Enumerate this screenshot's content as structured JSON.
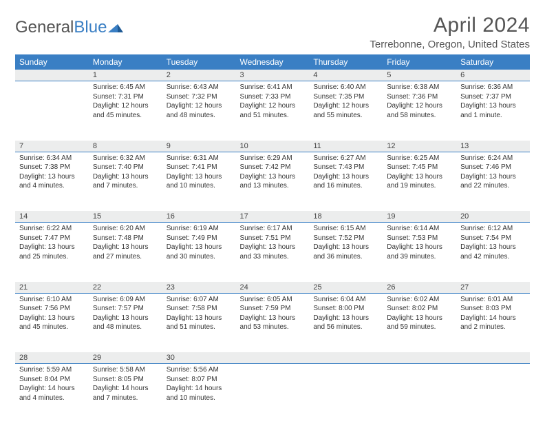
{
  "logo": {
    "text1": "General",
    "text2": "Blue"
  },
  "title": "April 2024",
  "location": "Terrebonne, Oregon, United States",
  "colors": {
    "header_bg": "#3a7fc4",
    "header_fg": "#ffffff",
    "daynum_bg": "#eceded",
    "page_bg": "#ffffff",
    "text": "#333333",
    "title": "#555555"
  },
  "weekdays": [
    "Sunday",
    "Monday",
    "Tuesday",
    "Wednesday",
    "Thursday",
    "Friday",
    "Saturday"
  ],
  "weeks": [
    [
      null,
      {
        "n": "1",
        "sr": "Sunrise: 6:45 AM",
        "ss": "Sunset: 7:31 PM",
        "dl": "Daylight: 12 hours and 45 minutes."
      },
      {
        "n": "2",
        "sr": "Sunrise: 6:43 AM",
        "ss": "Sunset: 7:32 PM",
        "dl": "Daylight: 12 hours and 48 minutes."
      },
      {
        "n": "3",
        "sr": "Sunrise: 6:41 AM",
        "ss": "Sunset: 7:33 PM",
        "dl": "Daylight: 12 hours and 51 minutes."
      },
      {
        "n": "4",
        "sr": "Sunrise: 6:40 AM",
        "ss": "Sunset: 7:35 PM",
        "dl": "Daylight: 12 hours and 55 minutes."
      },
      {
        "n": "5",
        "sr": "Sunrise: 6:38 AM",
        "ss": "Sunset: 7:36 PM",
        "dl": "Daylight: 12 hours and 58 minutes."
      },
      {
        "n": "6",
        "sr": "Sunrise: 6:36 AM",
        "ss": "Sunset: 7:37 PM",
        "dl": "Daylight: 13 hours and 1 minute."
      }
    ],
    [
      {
        "n": "7",
        "sr": "Sunrise: 6:34 AM",
        "ss": "Sunset: 7:38 PM",
        "dl": "Daylight: 13 hours and 4 minutes."
      },
      {
        "n": "8",
        "sr": "Sunrise: 6:32 AM",
        "ss": "Sunset: 7:40 PM",
        "dl": "Daylight: 13 hours and 7 minutes."
      },
      {
        "n": "9",
        "sr": "Sunrise: 6:31 AM",
        "ss": "Sunset: 7:41 PM",
        "dl": "Daylight: 13 hours and 10 minutes."
      },
      {
        "n": "10",
        "sr": "Sunrise: 6:29 AM",
        "ss": "Sunset: 7:42 PM",
        "dl": "Daylight: 13 hours and 13 minutes."
      },
      {
        "n": "11",
        "sr": "Sunrise: 6:27 AM",
        "ss": "Sunset: 7:43 PM",
        "dl": "Daylight: 13 hours and 16 minutes."
      },
      {
        "n": "12",
        "sr": "Sunrise: 6:25 AM",
        "ss": "Sunset: 7:45 PM",
        "dl": "Daylight: 13 hours and 19 minutes."
      },
      {
        "n": "13",
        "sr": "Sunrise: 6:24 AM",
        "ss": "Sunset: 7:46 PM",
        "dl": "Daylight: 13 hours and 22 minutes."
      }
    ],
    [
      {
        "n": "14",
        "sr": "Sunrise: 6:22 AM",
        "ss": "Sunset: 7:47 PM",
        "dl": "Daylight: 13 hours and 25 minutes."
      },
      {
        "n": "15",
        "sr": "Sunrise: 6:20 AM",
        "ss": "Sunset: 7:48 PM",
        "dl": "Daylight: 13 hours and 27 minutes."
      },
      {
        "n": "16",
        "sr": "Sunrise: 6:19 AM",
        "ss": "Sunset: 7:49 PM",
        "dl": "Daylight: 13 hours and 30 minutes."
      },
      {
        "n": "17",
        "sr": "Sunrise: 6:17 AM",
        "ss": "Sunset: 7:51 PM",
        "dl": "Daylight: 13 hours and 33 minutes."
      },
      {
        "n": "18",
        "sr": "Sunrise: 6:15 AM",
        "ss": "Sunset: 7:52 PM",
        "dl": "Daylight: 13 hours and 36 minutes."
      },
      {
        "n": "19",
        "sr": "Sunrise: 6:14 AM",
        "ss": "Sunset: 7:53 PM",
        "dl": "Daylight: 13 hours and 39 minutes."
      },
      {
        "n": "20",
        "sr": "Sunrise: 6:12 AM",
        "ss": "Sunset: 7:54 PM",
        "dl": "Daylight: 13 hours and 42 minutes."
      }
    ],
    [
      {
        "n": "21",
        "sr": "Sunrise: 6:10 AM",
        "ss": "Sunset: 7:56 PM",
        "dl": "Daylight: 13 hours and 45 minutes."
      },
      {
        "n": "22",
        "sr": "Sunrise: 6:09 AM",
        "ss": "Sunset: 7:57 PM",
        "dl": "Daylight: 13 hours and 48 minutes."
      },
      {
        "n": "23",
        "sr": "Sunrise: 6:07 AM",
        "ss": "Sunset: 7:58 PM",
        "dl": "Daylight: 13 hours and 51 minutes."
      },
      {
        "n": "24",
        "sr": "Sunrise: 6:05 AM",
        "ss": "Sunset: 7:59 PM",
        "dl": "Daylight: 13 hours and 53 minutes."
      },
      {
        "n": "25",
        "sr": "Sunrise: 6:04 AM",
        "ss": "Sunset: 8:00 PM",
        "dl": "Daylight: 13 hours and 56 minutes."
      },
      {
        "n": "26",
        "sr": "Sunrise: 6:02 AM",
        "ss": "Sunset: 8:02 PM",
        "dl": "Daylight: 13 hours and 59 minutes."
      },
      {
        "n": "27",
        "sr": "Sunrise: 6:01 AM",
        "ss": "Sunset: 8:03 PM",
        "dl": "Daylight: 14 hours and 2 minutes."
      }
    ],
    [
      {
        "n": "28",
        "sr": "Sunrise: 5:59 AM",
        "ss": "Sunset: 8:04 PM",
        "dl": "Daylight: 14 hours and 4 minutes."
      },
      {
        "n": "29",
        "sr": "Sunrise: 5:58 AM",
        "ss": "Sunset: 8:05 PM",
        "dl": "Daylight: 14 hours and 7 minutes."
      },
      {
        "n": "30",
        "sr": "Sunrise: 5:56 AM",
        "ss": "Sunset: 8:07 PM",
        "dl": "Daylight: 14 hours and 10 minutes."
      },
      null,
      null,
      null,
      null
    ]
  ]
}
